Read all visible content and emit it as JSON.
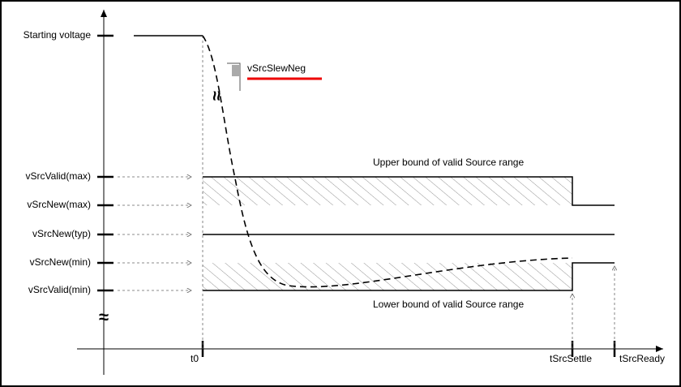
{
  "y_labels": [
    "Starting voltage",
    "vSrcValid(max)",
    "vSrcNew(max)",
    "vSrcNew(typ)",
    "vSrcNew(min)",
    "vSrcValid(min)"
  ],
  "x_labels": [
    "t0",
    "tSrcSettle",
    "tSrcReady"
  ],
  "annotations": {
    "slew": "vSrcSlewNeg",
    "upper": "Upper bound of valid Source range",
    "lower": "Lower bound of valid Source range"
  },
  "break_symbols": [
    "≈",
    "≈"
  ]
}
